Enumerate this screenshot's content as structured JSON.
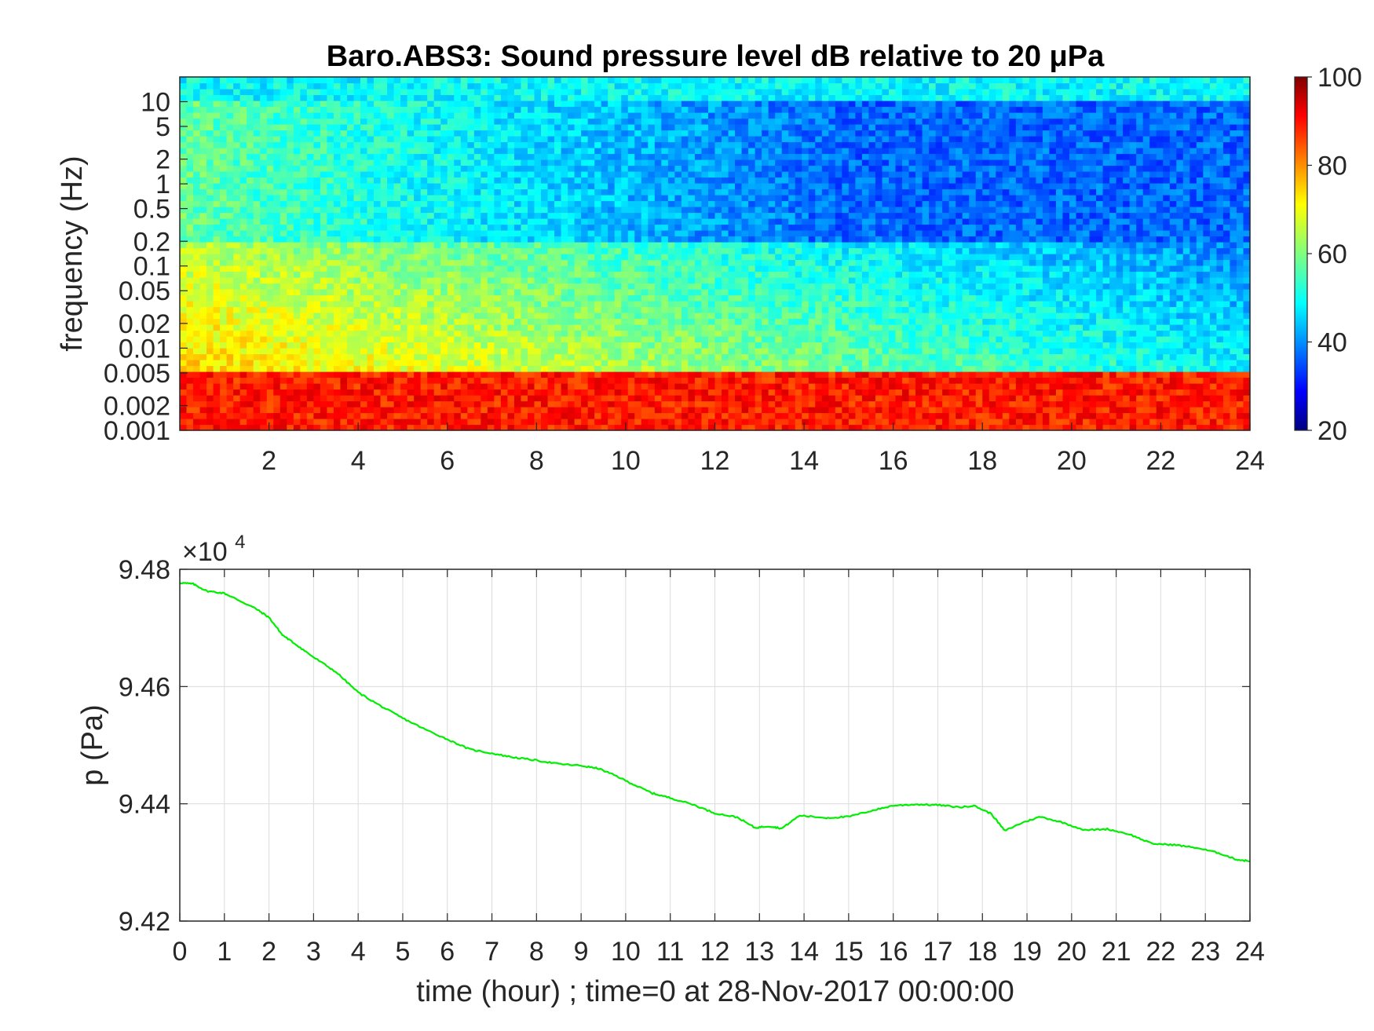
{
  "chart_data": [
    {
      "type": "heatmap",
      "title": "Baro.ABS3: Sound pressure level dB relative to 20 μPa",
      "ylabel": "frequency (Hz)",
      "xlabel": "",
      "xlim": [
        0,
        24
      ],
      "ylim": [
        0.001,
        20
      ],
      "y_scale": "log",
      "x_ticks": [
        "2",
        "4",
        "6",
        "8",
        "10",
        "12",
        "14",
        "16",
        "18",
        "20",
        "22",
        "24"
      ],
      "y_ticks": [
        "0.001",
        "0.002",
        "0.005",
        "0.01",
        "0.02",
        "0.05",
        "0.1",
        "0.2",
        "0.5",
        "1",
        "2",
        "5",
        "10"
      ],
      "colormap": "jet",
      "colorbar": {
        "ticks": [
          "20",
          "40",
          "60",
          "80",
          "100"
        ],
        "range": [
          20,
          100
        ]
      },
      "description_levels": {
        "low_freq_band_0.001_0.005Hz": 88,
        "mid_freq_band_0.01_0.2Hz_early": 72,
        "mid_freq_band_0.01_0.2Hz_late": 48,
        "high_freq_band_1_5Hz_late": 38,
        "top_band_above_10Hz": 50
      }
    },
    {
      "type": "line",
      "xlabel": "time (hour) ; time=0 at 28-Nov-2017 00:00:00",
      "ylabel": "p (Pa)",
      "y_multiplier": "×10",
      "y_multiplier_exp": "4",
      "xlim": [
        0,
        24
      ],
      "ylim": [
        9.42,
        9.48
      ],
      "grid": true,
      "color": "#00ee00",
      "x_ticks": [
        "0",
        "1",
        "2",
        "3",
        "4",
        "5",
        "6",
        "7",
        "8",
        "9",
        "10",
        "11",
        "12",
        "13",
        "14",
        "15",
        "16",
        "17",
        "18",
        "19",
        "20",
        "21",
        "22",
        "23",
        "24"
      ],
      "y_ticks": [
        "9.42",
        "9.44",
        "9.46",
        "9.48"
      ],
      "series": [
        {
          "x": [
            0,
            0.3,
            0.6,
            1.0,
            1.3,
            1.7,
            2.0,
            2.3,
            2.6,
            3.0,
            3.5,
            4.0,
            4.5,
            5.0,
            5.5,
            6.0,
            6.5,
            7.0,
            7.5,
            8.0,
            8.5,
            9.0,
            9.4,
            9.8,
            10.2,
            10.6,
            11.0,
            11.5,
            12.0,
            12.5,
            12.9,
            13.2,
            13.5,
            13.9,
            14.5,
            15.0,
            15.5,
            16.0,
            16.5,
            17.0,
            17.5,
            17.8,
            18.2,
            18.5,
            18.9,
            19.3,
            19.8,
            20.3,
            20.8,
            21.3,
            21.8,
            22.3,
            22.8,
            23.3,
            23.7,
            24.0
          ],
          "y": [
            9.4777,
            9.4775,
            9.4763,
            9.4759,
            9.4748,
            9.4733,
            9.4718,
            9.4688,
            9.4672,
            9.465,
            9.4625,
            9.459,
            9.4567,
            9.4546,
            9.4527,
            9.451,
            9.4493,
            9.4486,
            9.4479,
            9.4474,
            9.4468,
            9.4465,
            9.446,
            9.4447,
            9.4432,
            9.4418,
            9.441,
            9.4399,
            9.4384,
            9.4377,
            9.4359,
            9.4362,
            9.4358,
            9.438,
            9.4376,
            9.4378,
            9.4388,
            9.4397,
            9.4399,
            9.4398,
            9.4394,
            9.4397,
            9.4383,
            9.4354,
            9.4368,
            9.4378,
            9.4368,
            9.4355,
            9.4357,
            9.4348,
            9.4332,
            9.433,
            9.4325,
            9.4316,
            9.4305,
            9.4302
          ]
        }
      ]
    }
  ]
}
